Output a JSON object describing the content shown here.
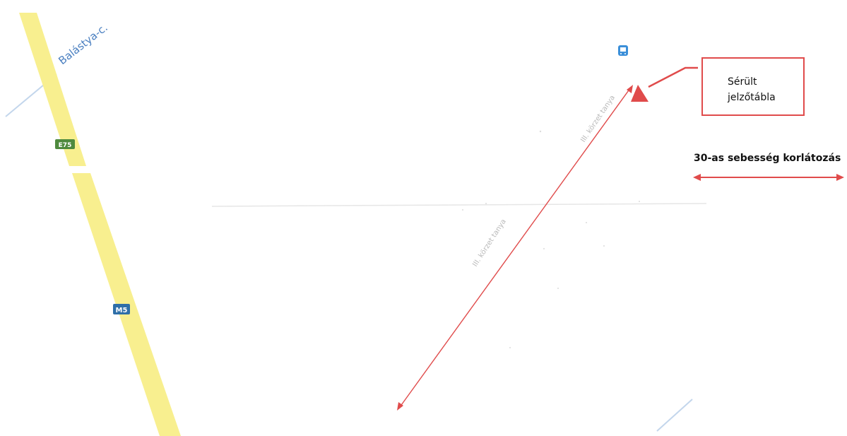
{
  "map": {
    "roads": {
      "balastya_label": "Balástya-c.",
      "e75_shield": "E75",
      "m5_shield": "M5",
      "local_road_label_upper": "III. körzet tanya",
      "local_road_label_lower": "III. körzet tanya"
    },
    "poi_icon": "bus-stop-icon",
    "callout": {
      "line1": "Sérült",
      "line2": "jelzőtábla"
    },
    "speed_limit_label": "30-as sebesség korlátozás",
    "colors": {
      "motorway": "#f8ef8f",
      "accent_red": "#e04b4b",
      "road_label_blue": "#4a7fc0",
      "e_shield_green": "#4f8a3e",
      "m_shield_blue": "#2f6fa8"
    }
  }
}
